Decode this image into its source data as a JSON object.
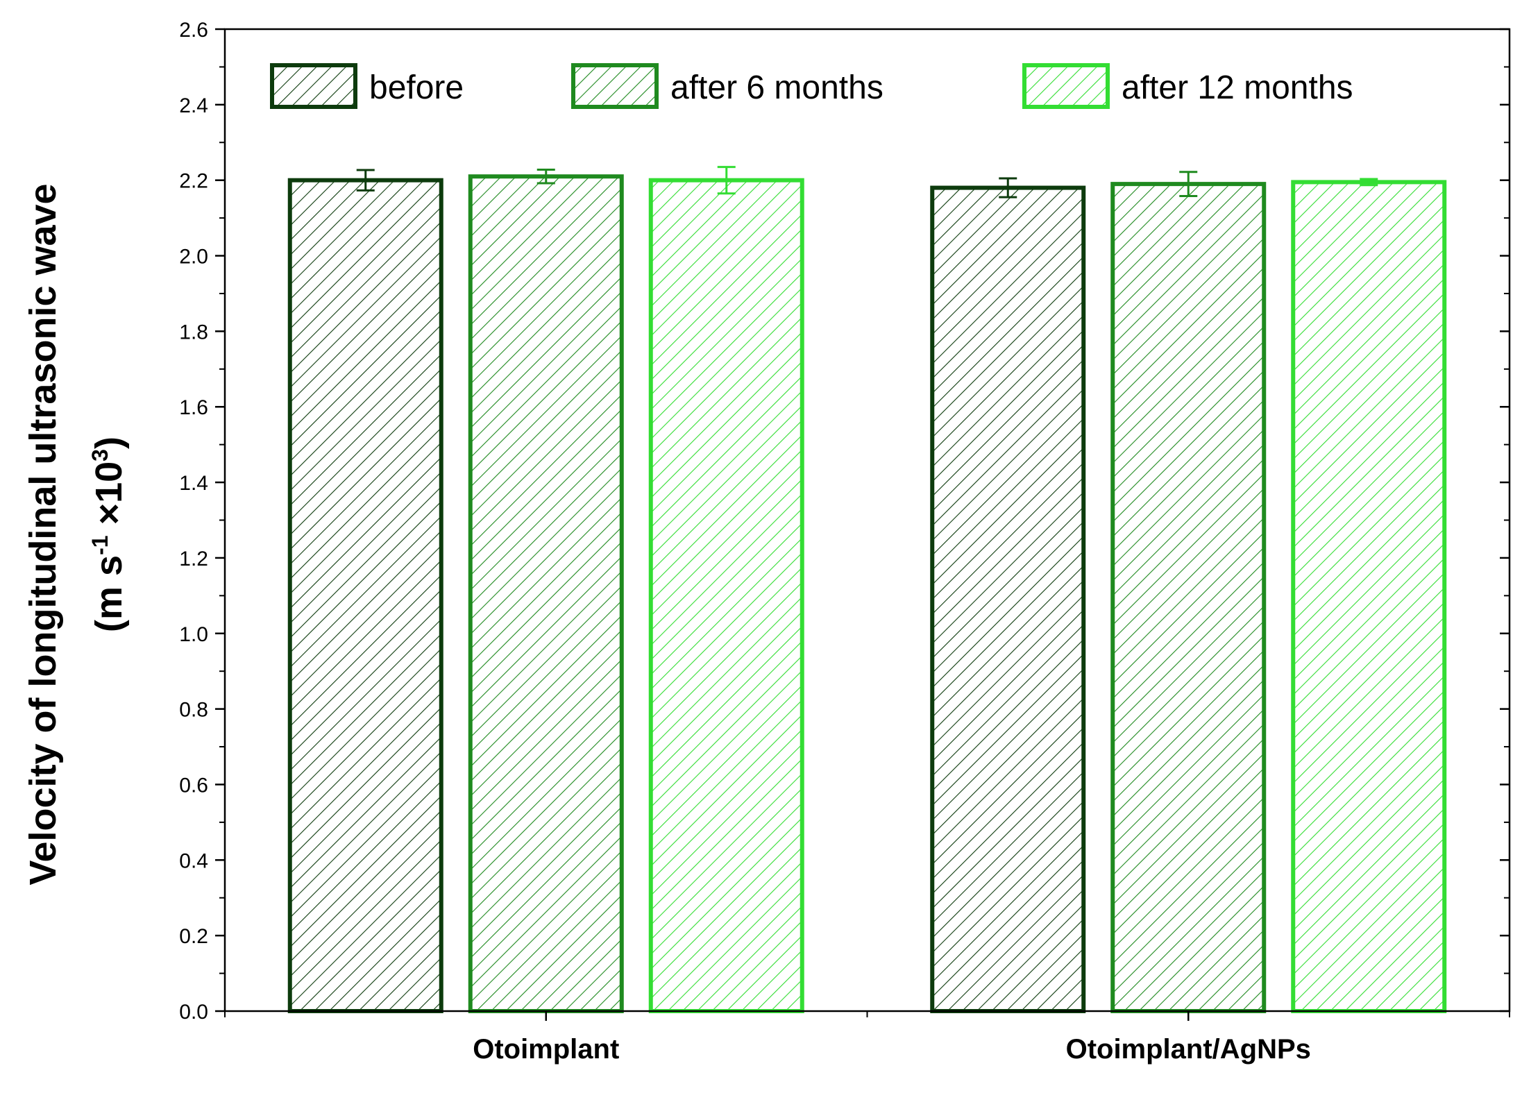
{
  "chart_data": {
    "type": "bar",
    "categories": [
      "Otoimplant",
      "Otoimplant/AgNPs"
    ],
    "series": [
      {
        "name": "before",
        "values": [
          2.2,
          2.18
        ],
        "errors": [
          0.027,
          0.025
        ],
        "color": "#0d3b0d"
      },
      {
        "name": "after 6 months",
        "values": [
          2.21,
          2.19
        ],
        "errors": [
          0.018,
          0.032
        ],
        "color": "#1f8a1f"
      },
      {
        "name": "after 12 months",
        "values": [
          2.2,
          2.195
        ],
        "errors": [
          0.035,
          0.008
        ],
        "color": "#33dd33"
      }
    ],
    "ylabel_line1": "Velocity of longitudinal ultrasonic wave",
    "ylabel_line2_prefix": "(m s",
    "ylabel_line2_sup1": "-1",
    "ylabel_line2_mid": " ×10",
    "ylabel_line2_sup2": "3",
    "ylabel_line2_suffix": ")",
    "ylim": [
      0,
      2.6
    ],
    "y_ticks": [
      "0.0",
      "0.2",
      "0.4",
      "0.6",
      "0.8",
      "1.0",
      "1.2",
      "1.4",
      "1.6",
      "1.8",
      "2.0",
      "2.2",
      "2.4",
      "2.6"
    ],
    "legend_position": "top",
    "bar_fill": "hatched"
  }
}
